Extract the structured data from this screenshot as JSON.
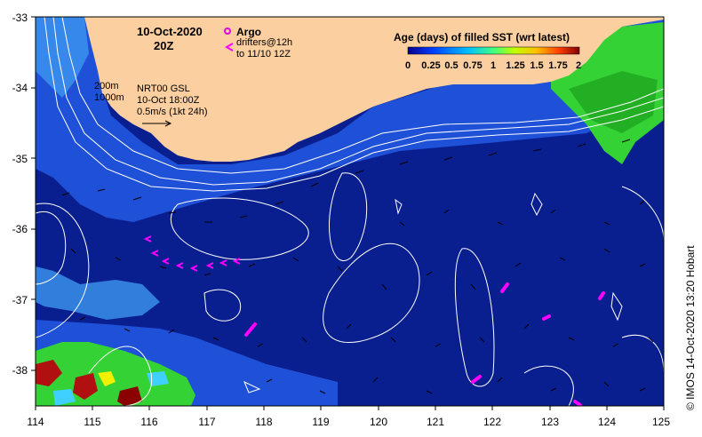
{
  "map": {
    "date_title": "10-Oct-2020",
    "time_title": "20Z",
    "argo_label": "Argo",
    "drifters_label": "drifters@12h",
    "drifters_range": "to 11/10 12Z",
    "contour_200": "200m",
    "contour_1000": "1000m",
    "model_label": "NRT00 GSL",
    "model_time": "10-Oct 18:00Z",
    "scale_label": "0.5m/s (1kt 24h)",
    "colorbar_title": "Age (days) of filled SST (wrt latest)",
    "colorbar_ticks": [
      "0",
      "0.25",
      "0.5",
      "0.75",
      "1",
      "1.25",
      "1.5",
      "1.75",
      "2"
    ],
    "credit": "© IMOS 14-Oct-2020 13:20 Hobart",
    "x_ticks": [
      "114",
      "115",
      "116",
      "117",
      "118",
      "119",
      "120",
      "121",
      "122",
      "123",
      "124",
      "125"
    ],
    "y_ticks": [
      "-33",
      "-34",
      "-35",
      "-36",
      "-37",
      "-38"
    ],
    "colors": {
      "land": "#fccfa0",
      "ocean_deep": "#0a1f8f",
      "ocean_mid": "#1e50d8",
      "ocean_light": "#3c96f0",
      "green": "#34d234",
      "argo": "#e000e0",
      "drifter": "#ff00ff"
    }
  }
}
